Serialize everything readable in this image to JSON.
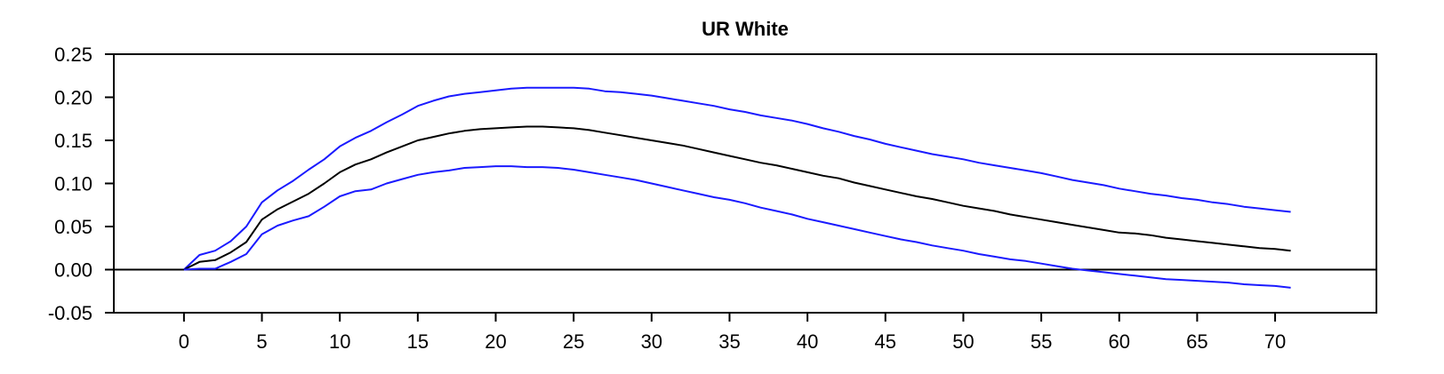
{
  "chart_data": {
    "type": "line",
    "title": "UR White",
    "xlabel": "",
    "ylabel": "",
    "xlim": [
      -4.5,
      76.5
    ],
    "ylim": [
      -0.05,
      0.25
    ],
    "x_ticks": [
      0,
      5,
      10,
      15,
      20,
      25,
      30,
      35,
      40,
      45,
      50,
      55,
      60,
      65,
      70
    ],
    "y_ticks": [
      -0.05,
      0.0,
      0.05,
      0.1,
      0.15,
      0.2,
      0.25
    ],
    "y_tick_labels": [
      "-0.05",
      "0.00",
      "0.05",
      "0.10",
      "0.15",
      "0.20",
      "0.25"
    ],
    "grid": false,
    "zero_line": true,
    "colors": {
      "upper": "#1a1aff",
      "center": "#000000",
      "lower": "#1a1aff"
    },
    "x": [
      0,
      1,
      2,
      3,
      4,
      5,
      6,
      7,
      8,
      9,
      10,
      11,
      12,
      13,
      14,
      15,
      16,
      17,
      18,
      19,
      20,
      21,
      22,
      23,
      24,
      25,
      26,
      27,
      28,
      29,
      30,
      31,
      32,
      33,
      34,
      35,
      36,
      37,
      38,
      39,
      40,
      41,
      42,
      43,
      44,
      45,
      46,
      47,
      48,
      49,
      50,
      51,
      52,
      53,
      54,
      55,
      56,
      57,
      58,
      59,
      60,
      61,
      62,
      63,
      64,
      65,
      66,
      67,
      68,
      69,
      70,
      71
    ],
    "series": [
      {
        "key": "upper",
        "values": [
          0.0,
          0.017,
          0.022,
          0.033,
          0.05,
          0.078,
          0.092,
          0.103,
          0.116,
          0.128,
          0.143,
          0.153,
          0.161,
          0.171,
          0.18,
          0.19,
          0.196,
          0.201,
          0.204,
          0.206,
          0.208,
          0.21,
          0.211,
          0.211,
          0.211,
          0.211,
          0.21,
          0.207,
          0.206,
          0.204,
          0.202,
          0.199,
          0.196,
          0.193,
          0.19,
          0.186,
          0.183,
          0.179,
          0.176,
          0.173,
          0.169,
          0.164,
          0.16,
          0.155,
          0.151,
          0.146,
          0.142,
          0.138,
          0.134,
          0.131,
          0.128,
          0.124,
          0.121,
          0.118,
          0.115,
          0.112,
          0.108,
          0.104,
          0.101,
          0.098,
          0.094,
          0.091,
          0.088,
          0.086,
          0.083,
          0.081,
          0.078,
          0.076,
          0.073,
          0.071,
          0.069,
          0.067
        ]
      },
      {
        "key": "center",
        "values": [
          0.0,
          0.009,
          0.011,
          0.02,
          0.032,
          0.058,
          0.07,
          0.079,
          0.088,
          0.1,
          0.113,
          0.122,
          0.128,
          0.136,
          0.143,
          0.15,
          0.154,
          0.158,
          0.161,
          0.163,
          0.164,
          0.165,
          0.166,
          0.166,
          0.165,
          0.164,
          0.162,
          0.159,
          0.156,
          0.153,
          0.15,
          0.147,
          0.144,
          0.14,
          0.136,
          0.132,
          0.128,
          0.124,
          0.121,
          0.117,
          0.113,
          0.109,
          0.106,
          0.101,
          0.097,
          0.093,
          0.089,
          0.085,
          0.082,
          0.078,
          0.074,
          0.071,
          0.068,
          0.064,
          0.061,
          0.058,
          0.055,
          0.052,
          0.049,
          0.046,
          0.043,
          0.042,
          0.04,
          0.037,
          0.035,
          0.033,
          0.031,
          0.029,
          0.027,
          0.025,
          0.024,
          0.022
        ]
      },
      {
        "key": "lower",
        "values": [
          0.0,
          0.001,
          0.001,
          0.009,
          0.018,
          0.041,
          0.051,
          0.057,
          0.062,
          0.073,
          0.085,
          0.091,
          0.093,
          0.1,
          0.105,
          0.11,
          0.113,
          0.115,
          0.118,
          0.119,
          0.12,
          0.12,
          0.119,
          0.119,
          0.118,
          0.116,
          0.113,
          0.11,
          0.107,
          0.104,
          0.1,
          0.096,
          0.092,
          0.088,
          0.084,
          0.081,
          0.077,
          0.072,
          0.068,
          0.064,
          0.059,
          0.055,
          0.051,
          0.047,
          0.043,
          0.039,
          0.035,
          0.032,
          0.028,
          0.025,
          0.022,
          0.018,
          0.015,
          0.012,
          0.01,
          0.007,
          0.004,
          0.001,
          -0.001,
          -0.003,
          -0.005,
          -0.007,
          -0.009,
          -0.011,
          -0.012,
          -0.013,
          -0.014,
          -0.015,
          -0.017,
          -0.018,
          -0.019,
          -0.021
        ]
      }
    ]
  }
}
